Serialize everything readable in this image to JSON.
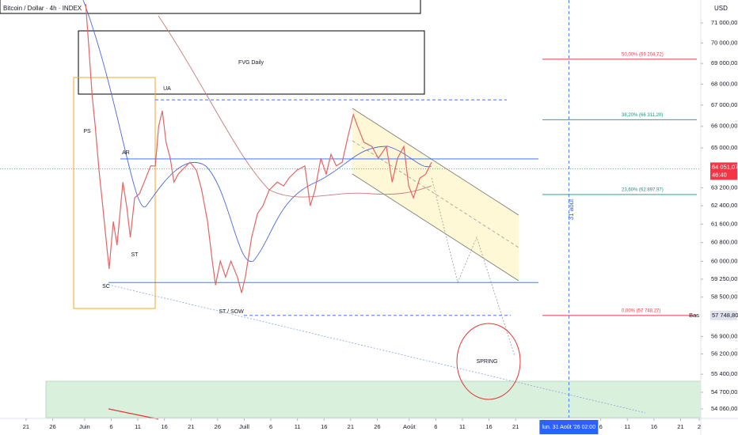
{
  "header": {
    "title": "Bitcoin / Dollar · 4h · INDEX",
    "currency": "USD"
  },
  "annotations": {
    "fvg": "FVG Daily",
    "ua": "UA",
    "ps": "PS",
    "ar": "AR",
    "st": "ST",
    "sc": "SC",
    "st_sow": "ST / SOW",
    "spring": "SPRING",
    "vertical_date": "31 août"
  },
  "chart_data": {
    "type": "line",
    "log_scale": true,
    "color": "#e06666",
    "x": [
      11.2,
      11.8,
      12.4,
      13.0,
      13.7,
      14.4,
      15.0,
      15.6,
      16.4,
      17.1,
      18.2,
      18.9,
      19.6,
      20.4,
      21.3,
      22.2,
      23.4,
      24.3,
      24.9,
      25.6,
      26.3,
      27.1,
      27.8,
      28.6,
      29.3,
      30.8,
      32.0,
      33.0,
      34.1,
      35.0,
      35.6,
      36.5,
      37.5,
      38.5,
      39.7,
      40.5,
      41.2,
      42.4,
      43.5,
      44.5,
      45.7,
      47.2,
      48.4,
      49.4,
      50.9,
      52.4,
      53.4,
      54.3,
      55.4,
      56.4,
      57.3,
      58.3,
      59.4,
      60.6,
      61.5,
      62.3,
      63.5,
      65.0,
      66.2,
      67.7,
      68.8,
      69.8,
      71.0,
      71.9,
      72.8,
      74.0,
      75.1,
      76.2
    ],
    "values": [
      71960,
      69780,
      67480,
      66000,
      63990,
      62400,
      61020,
      59680,
      61710,
      60690,
      63450,
      62400,
      61020,
      62750,
      62930,
      63450,
      64180,
      64180,
      66000,
      66730,
      65260,
      64530,
      63450,
      63810,
      63990,
      64350,
      63990,
      63100,
      61710,
      60010,
      59000,
      60010,
      59340,
      60010,
      59340,
      58680,
      59340,
      61020,
      62060,
      62400,
      63100,
      63450,
      63280,
      63630,
      63990,
      64180,
      62400,
      63100,
      64530,
      63810,
      64710,
      64180,
      64350,
      65630,
      66550,
      66000,
      65260,
      65070,
      64530,
      65070,
      63450,
      64530,
      65070,
      63280,
      62750,
      63630,
      63810,
      64350
    ],
    "xlim": [
      -4.9,
      126.8
    ],
    "ylim": [
      53730,
      72160
    ],
    "xticks": [
      {
        "value": 0,
        "label": "21"
      },
      {
        "value": 5,
        "label": "26"
      },
      {
        "value": 11,
        "label": "Juin"
      },
      {
        "value": 16,
        "label": "6"
      },
      {
        "value": 21,
        "label": "11"
      },
      {
        "value": 26,
        "label": "16"
      },
      {
        "value": 31,
        "label": "21"
      },
      {
        "value": 36,
        "label": "26"
      },
      {
        "value": 41,
        "label": "Juill"
      },
      {
        "value": 46,
        "label": "6"
      },
      {
        "value": 51,
        "label": "11"
      },
      {
        "value": 56,
        "label": "16"
      },
      {
        "value": 61,
        "label": "21"
      },
      {
        "value": 66,
        "label": "26"
      },
      {
        "value": 72,
        "label": "Août"
      },
      {
        "value": 77,
        "label": "6"
      },
      {
        "value": 82,
        "label": "11"
      },
      {
        "value": 87,
        "label": "16"
      },
      {
        "value": 92,
        "label": "21"
      },
      {
        "value": 108,
        "label": "6"
      },
      {
        "value": 113,
        "label": "11"
      },
      {
        "value": 118,
        "label": "16"
      },
      {
        "value": 123,
        "label": "21"
      },
      {
        "value": 126.5,
        "label": "2"
      }
    ],
    "yticks": [
      {
        "value": 71000,
        "label": "71 000,00"
      },
      {
        "value": 70000,
        "label": "70 000,00"
      },
      {
        "value": 69000,
        "label": "69 000,00"
      },
      {
        "value": 68000,
        "label": "68 000,00"
      },
      {
        "value": 67000,
        "label": "67 000,00"
      },
      {
        "value": 66000,
        "label": "66 000,00"
      },
      {
        "value": 65000,
        "label": "65 000,00"
      },
      {
        "value": 63200,
        "label": "63 200,00"
      },
      {
        "value": 62400,
        "label": "62 400,00"
      },
      {
        "value": 61600,
        "label": "61 600,00"
      },
      {
        "value": 60800,
        "label": "60 800,00"
      },
      {
        "value": 60000,
        "label": "60 000,00"
      },
      {
        "value": 59250,
        "label": "59 250,00"
      },
      {
        "value": 58500,
        "label": "58 500,00"
      },
      {
        "value": 56900,
        "label": "56 900,00"
      },
      {
        "value": 56200,
        "label": "56 200,00"
      },
      {
        "value": 55400,
        "label": "55 400,00"
      },
      {
        "value": 54700,
        "label": "54 700,00"
      },
      {
        "value": 54060,
        "label": "54 060,00"
      }
    ],
    "current_price": {
      "value": 64051.07,
      "label": "64 051,07"
    },
    "countdown": "46:40",
    "low": {
      "value": 57748.8,
      "label": "57 748,80"
    },
    "low_tag": "Bas",
    "cursor": {
      "value": 102,
      "label": "lun. 31 Août '26  02:00"
    },
    "fib_levels": [
      {
        "value": 69204.72,
        "label": "50,00% (69 204,72)",
        "color": "#f23645"
      },
      {
        "value": 66311.2,
        "label": "38,20% (66 311,20)",
        "color": "#089981"
      },
      {
        "value": 62897.97,
        "label": "23,60% (62 897,97)",
        "color": "#089981"
      },
      {
        "value": 57748.27,
        "label": "0,00% (57 748,27)",
        "color": "#f23645"
      }
    ],
    "levels": [
      {
        "value": 67250,
        "color": "#2962ff",
        "dashed": true
      },
      {
        "value": 64500,
        "color": "#2962ff",
        "dashed": false
      },
      {
        "value": 59110,
        "color": "#2962ff",
        "dashed": false
      }
    ]
  }
}
